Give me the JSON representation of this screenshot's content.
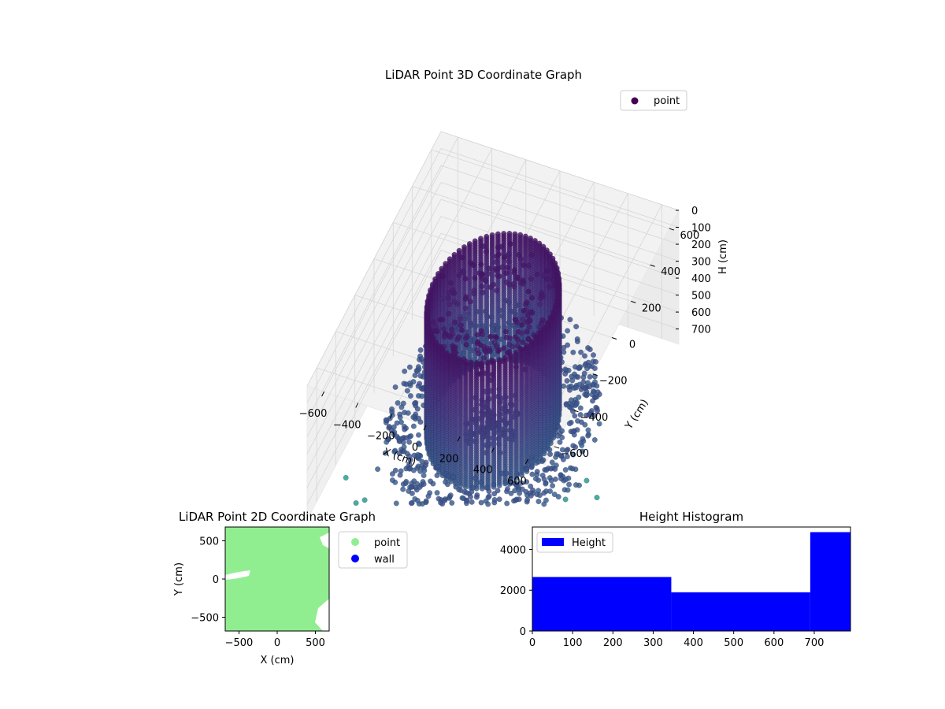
{
  "chart_data": [
    {
      "type": "scatter3d",
      "title": "LiDAR Point 3D Coordinate Graph",
      "xlabel": "X (cm)",
      "ylabel": "Y (cm)",
      "zlabel": "H (cm)",
      "xlim": [
        -700,
        700
      ],
      "ylim": [
        -700,
        700
      ],
      "zlim": [
        0,
        790
      ],
      "z_axis_inverted": true,
      "x_ticks": [
        -600,
        -400,
        -200,
        0,
        200,
        400,
        600
      ],
      "y_ticks": [
        -600,
        -400,
        -200,
        0,
        200,
        400,
        600
      ],
      "z_ticks": [
        0,
        100,
        200,
        300,
        400,
        500,
        600,
        700
      ],
      "x_tick_labels": [
        "−600",
        "−400",
        "−200",
        "0",
        "200",
        "400",
        "600"
      ],
      "y_tick_labels": [
        "−600",
        "−400",
        "−200",
        "0",
        "200",
        "400",
        "600"
      ],
      "z_tick_labels": [
        "0",
        "100",
        "200",
        "300",
        "400",
        "500",
        "600",
        "700"
      ],
      "colormap": "viridis",
      "legend": {
        "entries": [
          "point"
        ],
        "placement": "top-right",
        "color": "#440154"
      },
      "structure": {
        "cylinder_radius": 340,
        "cylinder_height_range": [
          0,
          750
        ],
        "column_count": 72,
        "floor_ring_radius_range": [
          380,
          560
        ],
        "scattered_outliers": true
      }
    },
    {
      "type": "scatter",
      "title": "LiDAR Point 2D Coordinate Graph",
      "xlabel": "X (cm)",
      "ylabel": "Y (cm)",
      "xlim": [
        -680,
        680
      ],
      "ylim": [
        -680,
        680
      ],
      "x_ticks": [
        -500,
        0,
        500
      ],
      "y_ticks": [
        -500,
        0,
        500
      ],
      "x_tick_labels": [
        "−500",
        "0",
        "500"
      ],
      "y_tick_labels": [
        "−500",
        "0",
        "500"
      ],
      "grid": false,
      "legend": {
        "placement": "outside-right"
      },
      "series": [
        {
          "name": "point",
          "color": "#90ee90"
        },
        {
          "name": "wall",
          "color": "#0000ff"
        }
      ]
    },
    {
      "type": "bar",
      "title": "Height Histogram",
      "x_ticks": [
        0,
        100,
        200,
        300,
        400,
        500,
        600,
        700
      ],
      "y_ticks": [
        0,
        2000,
        4000
      ],
      "xlim": [
        0,
        790
      ],
      "ylim": [
        0,
        5100
      ],
      "bins": [
        {
          "x0": 0,
          "x1": 345,
          "count": 2650
        },
        {
          "x0": 345,
          "x1": 690,
          "count": 1900
        },
        {
          "x0": 690,
          "x1": 790,
          "count": 4850
        }
      ],
      "bar_color": "#0000ff",
      "legend": {
        "entries": [
          "Height"
        ],
        "placement": "top-left"
      }
    }
  ]
}
